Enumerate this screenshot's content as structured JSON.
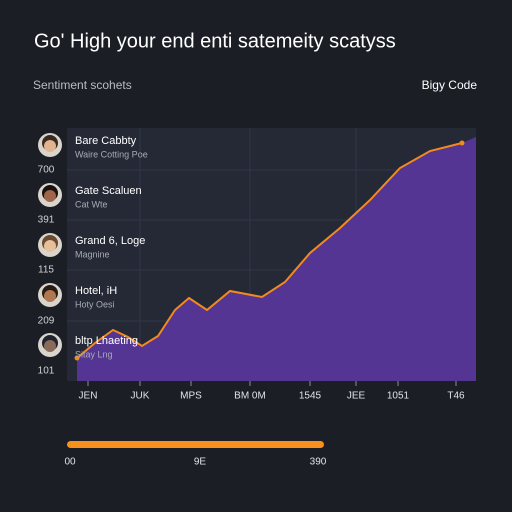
{
  "header": {
    "title": "Go' High your end enti satemeity scatyss",
    "subtitle": "Sentiment scohets",
    "right_label": "Bigy Code"
  },
  "items": [
    {
      "name": "Bare Cabbty",
      "detail": "Waire Cotting Poe"
    },
    {
      "name": "Gate Scaluen",
      "detail": "Cat Wte"
    },
    {
      "name": "Grand 6, Loge",
      "detail": "Magnine"
    },
    {
      "name": "Hotel, iH",
      "detail": "Hoty Oesi"
    },
    {
      "name": "bltp Lhaeting",
      "detail": "Sitay Lng"
    }
  ],
  "y_labels": [
    "700",
    "391",
    "115",
    "209",
    "101"
  ],
  "x_labels": [
    "JEN",
    "JUK",
    "MPS",
    "BM 0M",
    "1545",
    "JEE",
    "1051",
    "T46"
  ],
  "slider": {
    "labels": [
      "00",
      "9E",
      "390"
    ]
  }
}
